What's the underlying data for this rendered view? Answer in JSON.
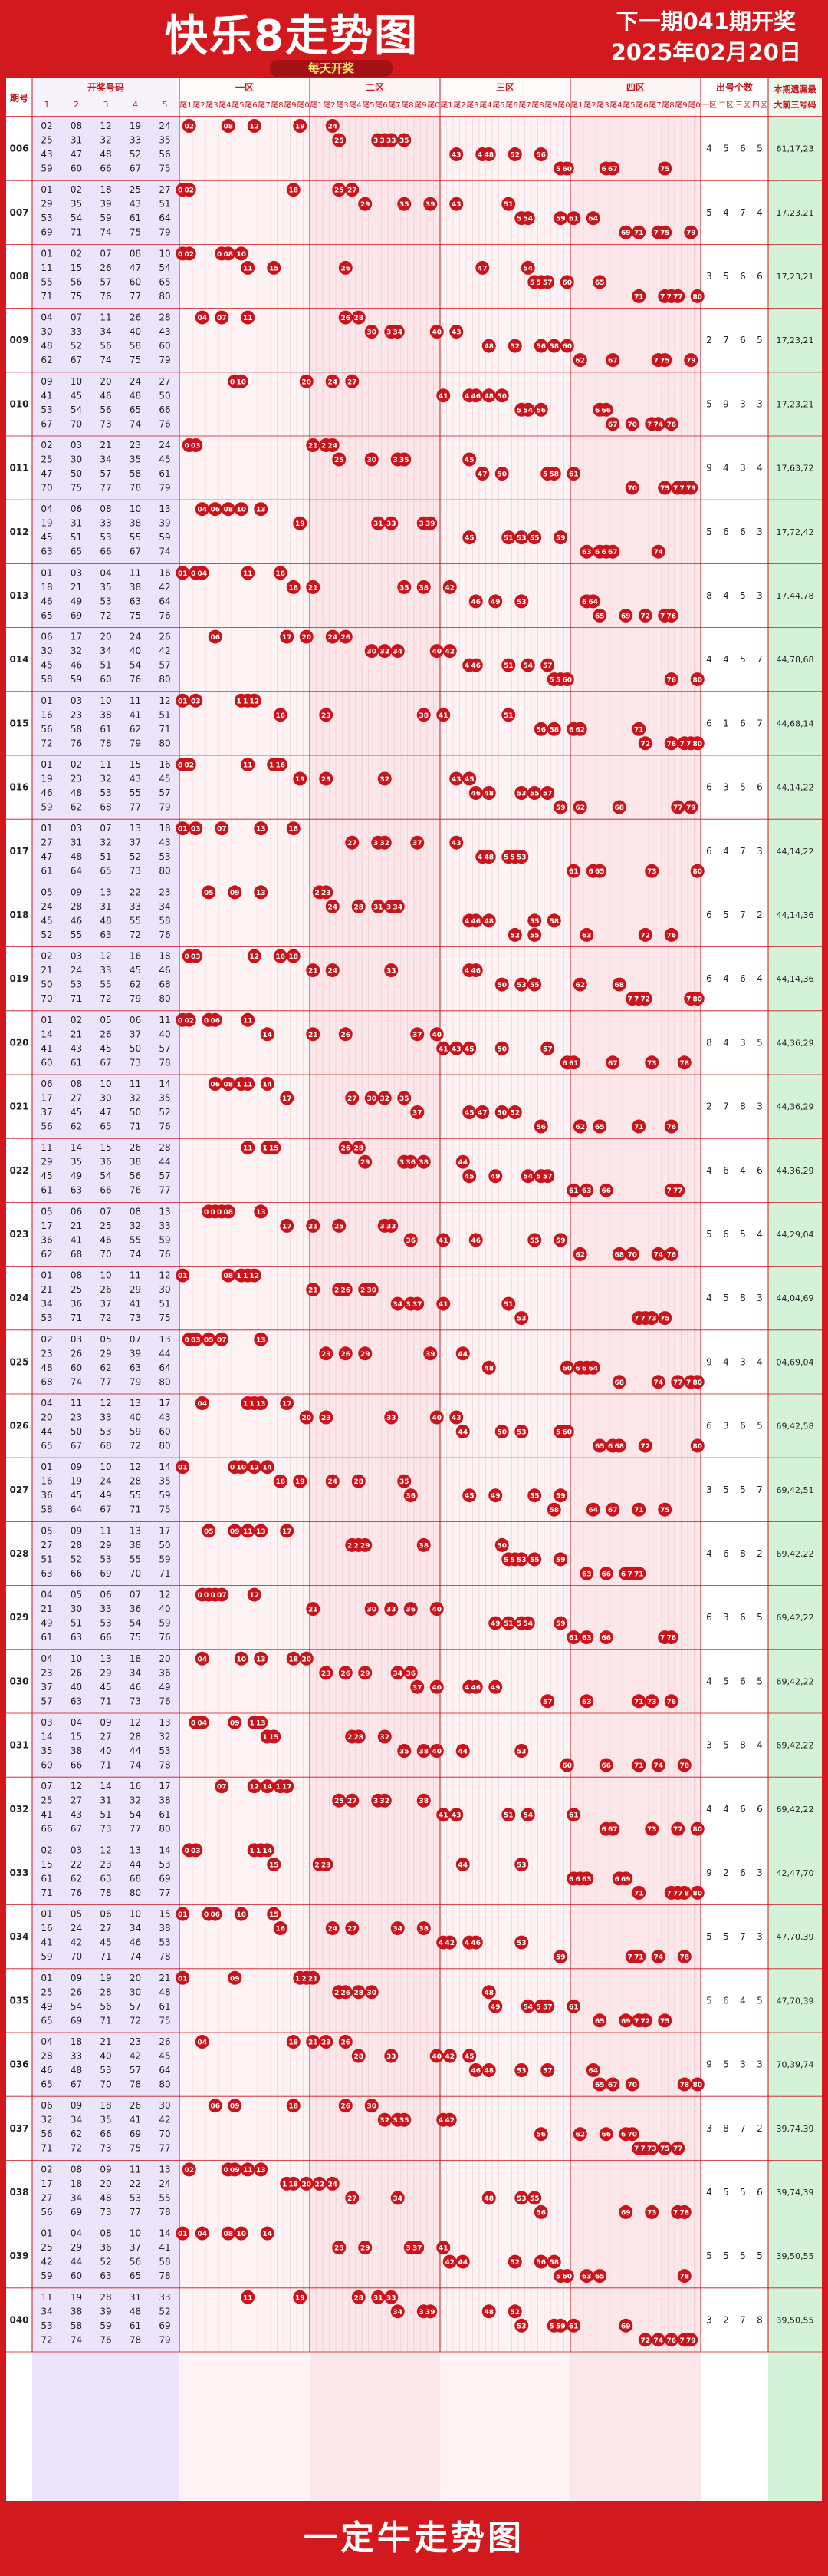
{
  "title": "快乐8走势图",
  "subtitle": "每天开奖",
  "next_draw": {
    "line1": "下一期041期开奖",
    "line2": "2025年02月20日"
  },
  "footer": "一定牛走势图",
  "headers": {
    "issue": "期号",
    "winning": "开奖号码",
    "winning_cols": [
      "1",
      "2",
      "3",
      "4",
      "5"
    ],
    "zones": [
      "一区",
      "二区",
      "三区",
      "四区"
    ],
    "tails": [
      "尾1",
      "尾2",
      "尾3",
      "尾4",
      "尾5",
      "尾6",
      "尾7",
      "尾8",
      "尾9",
      "尾0"
    ],
    "count_title": "出号个数",
    "count_cols": [
      "一区",
      "二区",
      "三区",
      "四区"
    ],
    "miss_title_1": "本期遗漏最",
    "miss_title_2": "大前三号码"
  },
  "colors": {
    "brand_red": "#d21a1e",
    "ball_red": "#c8151c",
    "zone_pink": "#fbe7ea",
    "winning_purple": "#ebe4fa",
    "miss_green": "#d4f2d8",
    "grid_line": "#e9b6ba"
  },
  "chart_data": {
    "type": "table",
    "rows": [
      {
        "issue": "006",
        "numbers": [
          2,
          8,
          12,
          19,
          24,
          25,
          31,
          32,
          33,
          35,
          43,
          47,
          48,
          52,
          56,
          59,
          60,
          66,
          67,
          75
        ],
        "counts": [
          4,
          5,
          6,
          5
        ],
        "miss": "61,17,23"
      },
      {
        "issue": "007",
        "numbers": [
          1,
          2,
          18,
          25,
          27,
          29,
          35,
          39,
          43,
          51,
          53,
          54,
          59,
          61,
          64,
          69,
          71,
          74,
          75,
          79
        ],
        "counts": [
          5,
          4,
          7,
          4
        ],
        "miss": "17,23,21"
      },
      {
        "issue": "008",
        "numbers": [
          1,
          2,
          7,
          8,
          10,
          11,
          15,
          26,
          47,
          54,
          55,
          56,
          57,
          60,
          65,
          71,
          75,
          76,
          77,
          80
        ],
        "counts": [
          3,
          5,
          6,
          6
        ],
        "miss": "17,23,21"
      },
      {
        "issue": "009",
        "numbers": [
          4,
          7,
          11,
          26,
          28,
          30,
          33,
          34,
          40,
          43,
          48,
          52,
          56,
          58,
          60,
          62,
          67,
          74,
          75,
          79
        ],
        "counts": [
          2,
          7,
          6,
          5
        ],
        "miss": "17,23,21"
      },
      {
        "issue": "010",
        "numbers": [
          9,
          10,
          20,
          24,
          27,
          41,
          45,
          46,
          48,
          50,
          53,
          54,
          56,
          65,
          66,
          67,
          70,
          73,
          74,
          76
        ],
        "counts": [
          5,
          9,
          3,
          3
        ],
        "miss": "17,23,21"
      },
      {
        "issue": "011",
        "numbers": [
          2,
          3,
          21,
          23,
          24,
          25,
          30,
          34,
          35,
          45,
          47,
          50,
          57,
          58,
          61,
          70,
          75,
          77,
          78,
          79
        ],
        "counts": [
          9,
          4,
          3,
          4
        ],
        "miss": "17,63,72"
      },
      {
        "issue": "012",
        "numbers": [
          4,
          6,
          8,
          10,
          13,
          19,
          31,
          33,
          38,
          39,
          45,
          51,
          53,
          55,
          59,
          63,
          65,
          66,
          67,
          74
        ],
        "counts": [
          5,
          6,
          6,
          3
        ],
        "miss": "17,72,42"
      },
      {
        "issue": "013",
        "numbers": [
          1,
          3,
          4,
          11,
          16,
          18,
          21,
          35,
          38,
          42,
          46,
          49,
          53,
          63,
          64,
          65,
          69,
          72,
          75,
          76
        ],
        "counts": [
          8,
          4,
          5,
          3
        ],
        "miss": "17,44,78"
      },
      {
        "issue": "014",
        "numbers": [
          6,
          17,
          20,
          24,
          26,
          30,
          32,
          34,
          40,
          42,
          45,
          46,
          51,
          54,
          57,
          58,
          59,
          60,
          76,
          80
        ],
        "counts": [
          4,
          4,
          5,
          7
        ],
        "miss": "44,78,68"
      },
      {
        "issue": "015",
        "numbers": [
          1,
          3,
          10,
          11,
          12,
          16,
          23,
          38,
          41,
          51,
          56,
          58,
          61,
          62,
          71,
          72,
          76,
          78,
          79,
          80
        ],
        "counts": [
          6,
          1,
          6,
          7
        ],
        "miss": "44,68,14"
      },
      {
        "issue": "016",
        "numbers": [
          1,
          2,
          11,
          15,
          16,
          19,
          23,
          32,
          43,
          45,
          46,
          48,
          53,
          55,
          57,
          59,
          62,
          68,
          77,
          79
        ],
        "counts": [
          6,
          3,
          5,
          6
        ],
        "miss": "44,14,22"
      },
      {
        "issue": "017",
        "numbers": [
          1,
          3,
          7,
          13,
          18,
          27,
          31,
          32,
          37,
          43,
          47,
          48,
          51,
          52,
          53,
          61,
          64,
          65,
          73,
          80
        ],
        "counts": [
          6,
          4,
          7,
          3
        ],
        "miss": "44,14,22"
      },
      {
        "issue": "018",
        "numbers": [
          5,
          9,
          13,
          22,
          23,
          24,
          28,
          31,
          33,
          34,
          45,
          46,
          48,
          55,
          58,
          52,
          55,
          63,
          72,
          76
        ],
        "counts": [
          6,
          5,
          7,
          2
        ],
        "miss": "44,14,36"
      },
      {
        "issue": "019",
        "numbers": [
          2,
          3,
          12,
          16,
          18,
          21,
          24,
          33,
          45,
          46,
          50,
          53,
          55,
          62,
          68,
          70,
          71,
          72,
          79,
          80
        ],
        "counts": [
          6,
          4,
          6,
          4
        ],
        "miss": "44,14,36"
      },
      {
        "issue": "020",
        "numbers": [
          1,
          2,
          5,
          6,
          11,
          14,
          21,
          26,
          37,
          40,
          41,
          43,
          45,
          50,
          57,
          60,
          61,
          67,
          73,
          78
        ],
        "counts": [
          8,
          4,
          3,
          5
        ],
        "miss": "44,36,29"
      },
      {
        "issue": "021",
        "numbers": [
          6,
          8,
          10,
          11,
          14,
          17,
          27,
          30,
          32,
          35,
          37,
          45,
          47,
          50,
          52,
          56,
          62,
          65,
          71,
          76
        ],
        "counts": [
          2,
          7,
          8,
          3
        ],
        "miss": "44,36,29"
      },
      {
        "issue": "022",
        "numbers": [
          11,
          14,
          15,
          26,
          28,
          29,
          35,
          36,
          38,
          44,
          45,
          49,
          54,
          56,
          57,
          61,
          63,
          66,
          76,
          77
        ],
        "counts": [
          4,
          6,
          4,
          6
        ],
        "miss": "44,36,29"
      },
      {
        "issue": "023",
        "numbers": [
          5,
          6,
          7,
          8,
          13,
          17,
          21,
          25,
          32,
          33,
          36,
          41,
          46,
          55,
          59,
          62,
          68,
          70,
          74,
          76
        ],
        "counts": [
          5,
          6,
          5,
          4
        ],
        "miss": "44,29,04"
      },
      {
        "issue": "024",
        "numbers": [
          1,
          8,
          10,
          11,
          12,
          21,
          25,
          26,
          29,
          30,
          34,
          36,
          37,
          41,
          51,
          53,
          71,
          72,
          73,
          75
        ],
        "counts": [
          4,
          5,
          8,
          3
        ],
        "miss": "44,04,69"
      },
      {
        "issue": "025",
        "numbers": [
          2,
          3,
          5,
          7,
          13,
          23,
          26,
          29,
          39,
          44,
          48,
          60,
          62,
          63,
          64,
          68,
          74,
          77,
          79,
          80
        ],
        "counts": [
          9,
          4,
          3,
          4
        ],
        "miss": "04,69,04"
      },
      {
        "issue": "026",
        "numbers": [
          4,
          11,
          12,
          13,
          17,
          20,
          23,
          33,
          40,
          43,
          44,
          50,
          53,
          59,
          60,
          65,
          67,
          68,
          72,
          80
        ],
        "counts": [
          6,
          3,
          6,
          5
        ],
        "miss": "69,42,58"
      },
      {
        "issue": "027",
        "numbers": [
          1,
          9,
          10,
          12,
          14,
          16,
          19,
          24,
          28,
          35,
          36,
          45,
          49,
          55,
          59,
          58,
          64,
          67,
          71,
          75
        ],
        "counts": [
          3,
          5,
          5,
          7
        ],
        "miss": "69,42,51"
      },
      {
        "issue": "028",
        "numbers": [
          5,
          9,
          11,
          13,
          17,
          27,
          28,
          29,
          38,
          50,
          51,
          52,
          53,
          55,
          59,
          63,
          66,
          69,
          70,
          71
        ],
        "counts": [
          4,
          6,
          8,
          2
        ],
        "miss": "69,42,22"
      },
      {
        "issue": "029",
        "numbers": [
          4,
          5,
          6,
          7,
          12,
          21,
          30,
          33,
          36,
          40,
          49,
          51,
          53,
          54,
          59,
          61,
          63,
          66,
          75,
          76
        ],
        "counts": [
          6,
          3,
          6,
          5
        ],
        "miss": "69,42,22"
      },
      {
        "issue": "030",
        "numbers": [
          4,
          10,
          13,
          18,
          20,
          23,
          26,
          29,
          34,
          36,
          37,
          40,
          45,
          46,
          49,
          57,
          63,
          71,
          73,
          76
        ],
        "counts": [
          4,
          5,
          6,
          5
        ],
        "miss": "69,42,22"
      },
      {
        "issue": "031",
        "numbers": [
          3,
          4,
          9,
          12,
          13,
          14,
          15,
          27,
          28,
          32,
          35,
          38,
          40,
          44,
          53,
          60,
          66,
          71,
          74,
          78
        ],
        "counts": [
          3,
          5,
          8,
          4
        ],
        "miss": "69,42,22"
      },
      {
        "issue": "032",
        "numbers": [
          7,
          12,
          14,
          16,
          17,
          25,
          27,
          31,
          32,
          38,
          41,
          43,
          51,
          54,
          61,
          66,
          67,
          73,
          77,
          80
        ],
        "counts": [
          4,
          4,
          6,
          6
        ],
        "miss": "69,42,22"
      },
      {
        "issue": "033",
        "numbers": [
          2,
          3,
          12,
          13,
          14,
          15,
          22,
          23,
          44,
          53,
          61,
          62,
          63,
          68,
          69,
          71,
          76,
          78,
          80,
          77
        ],
        "counts": [
          9,
          2,
          6,
          3
        ],
        "miss": "42,47,70"
      },
      {
        "issue": "034",
        "numbers": [
          1,
          5,
          6,
          10,
          15,
          16,
          24,
          27,
          34,
          38,
          41,
          42,
          45,
          46,
          53,
          59,
          70,
          71,
          74,
          78
        ],
        "counts": [
          5,
          5,
          7,
          3
        ],
        "miss": "47,70,39"
      },
      {
        "issue": "035",
        "numbers": [
          1,
          9,
          19,
          20,
          21,
          25,
          26,
          28,
          30,
          48,
          49,
          54,
          56,
          57,
          61,
          65,
          69,
          71,
          72,
          75
        ],
        "counts": [
          5,
          6,
          4,
          5
        ],
        "miss": "47,70,39"
      },
      {
        "issue": "036",
        "numbers": [
          4,
          18,
          21,
          23,
          26,
          28,
          33,
          40,
          42,
          45,
          46,
          48,
          53,
          57,
          64,
          65,
          67,
          70,
          78,
          80
        ],
        "counts": [
          9,
          5,
          3,
          3
        ],
        "miss": "70,39,74"
      },
      {
        "issue": "037",
        "numbers": [
          6,
          9,
          18,
          26,
          30,
          32,
          34,
          35,
          41,
          42,
          56,
          62,
          66,
          69,
          70,
          71,
          72,
          73,
          75,
          77
        ],
        "counts": [
          3,
          8,
          7,
          2
        ],
        "miss": "39,74,39"
      },
      {
        "issue": "038",
        "numbers": [
          2,
          8,
          9,
          11,
          13,
          17,
          18,
          20,
          22,
          24,
          27,
          34,
          48,
          53,
          55,
          56,
          69,
          73,
          77,
          78
        ],
        "counts": [
          4,
          5,
          5,
          6
        ],
        "miss": "39,74,39"
      },
      {
        "issue": "039",
        "numbers": [
          1,
          4,
          8,
          10,
          14,
          25,
          29,
          36,
          37,
          41,
          42,
          44,
          52,
          56,
          58,
          59,
          60,
          63,
          65,
          78
        ],
        "counts": [
          5,
          5,
          5,
          5
        ],
        "miss": "39,50,55"
      },
      {
        "issue": "040",
        "numbers": [
          11,
          19,
          28,
          31,
          33,
          34,
          38,
          39,
          48,
          52,
          53,
          58,
          59,
          61,
          69,
          72,
          74,
          76,
          78,
          79
        ],
        "counts": [
          3,
          2,
          7,
          8
        ],
        "miss": "39,50,55"
      }
    ]
  }
}
